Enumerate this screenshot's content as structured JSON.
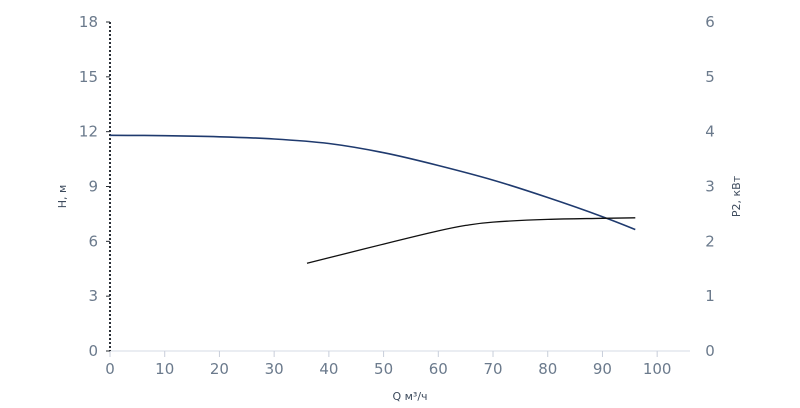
{
  "chart_data": {
    "type": "line",
    "xlabel": "Q м³/ч",
    "ylabel_left": "H, м",
    "ylabel_right": "P2, кВт",
    "xlim": [
      0,
      106
    ],
    "ylim_left": [
      0,
      18
    ],
    "ylim_right": [
      0,
      6
    ],
    "x_ticks": [
      0,
      10,
      20,
      30,
      40,
      50,
      60,
      70,
      80,
      90,
      100
    ],
    "y_left_ticks": [
      0,
      3,
      6,
      9,
      12,
      15,
      18
    ],
    "y_right_ticks": [
      0,
      1,
      2,
      3,
      4,
      5,
      6
    ],
    "grid": false,
    "series": [
      {
        "axis": "left",
        "color": "#1f3a6e",
        "x": [
          0,
          10,
          20,
          30,
          40,
          50,
          60,
          70,
          80,
          90,
          96
        ],
        "y": [
          11.8,
          11.78,
          11.72,
          11.6,
          11.35,
          10.85,
          10.15,
          9.35,
          8.4,
          7.35,
          6.65
        ]
      },
      {
        "axis": "right",
        "color": "#111111",
        "x": [
          36,
          40,
          50,
          60,
          65,
          70,
          80,
          90,
          96
        ],
        "y": [
          1.6,
          1.7,
          1.95,
          2.19,
          2.29,
          2.35,
          2.4,
          2.42,
          2.43
        ]
      }
    ]
  }
}
